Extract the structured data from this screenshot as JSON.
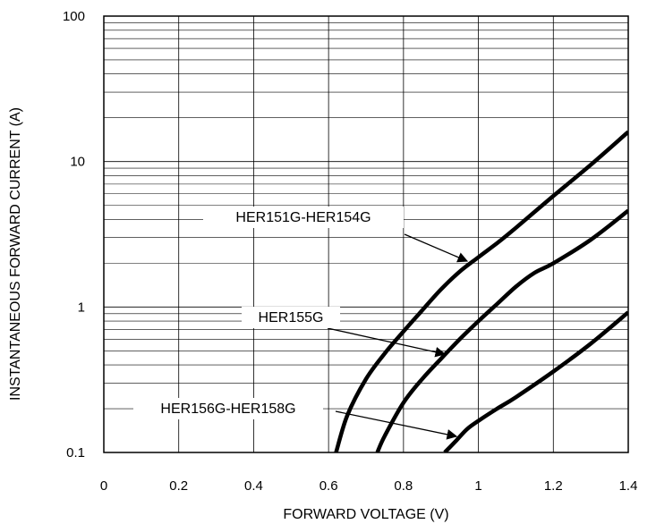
{
  "chart_data": {
    "type": "line",
    "title": "",
    "xlabel": "FORWARD VOLTAGE (V)",
    "ylabel": "INSTANTANEOUS FORWARD CURRENT (A)",
    "xlim": [
      0,
      1.4
    ],
    "ylim": [
      0.1,
      100
    ],
    "yscale": "log",
    "grid": true,
    "x_ticks": [
      "0",
      "0.2",
      "0.4",
      "0.6",
      "0.8",
      "1",
      "1.2",
      "1.4"
    ],
    "y_ticks": [
      "0.1",
      "1",
      "10",
      "100"
    ],
    "series": [
      {
        "name": "HER151G-HER154G",
        "x": [
          0.62,
          0.65,
          0.7,
          0.75,
          0.8,
          0.85,
          0.9,
          0.95,
          1.0,
          1.05,
          1.1,
          1.2,
          1.3,
          1.4
        ],
        "y": [
          0.1,
          0.18,
          0.32,
          0.48,
          0.68,
          0.95,
          1.32,
          1.75,
          2.2,
          2.75,
          3.5,
          5.8,
          9.5,
          16
        ]
      },
      {
        "name": "HER155G",
        "x": [
          0.73,
          0.75,
          0.8,
          0.85,
          0.9,
          0.95,
          1.0,
          1.05,
          1.1,
          1.15,
          1.2,
          1.3,
          1.4
        ],
        "y": [
          0.1,
          0.13,
          0.22,
          0.32,
          0.44,
          0.6,
          0.8,
          1.05,
          1.38,
          1.72,
          2.0,
          2.9,
          4.6
        ]
      },
      {
        "name": "HER156G-HER158G",
        "x": [
          0.91,
          0.94,
          0.97,
          1.0,
          1.05,
          1.1,
          1.2,
          1.3,
          1.4
        ],
        "y": [
          0.1,
          0.12,
          0.145,
          0.165,
          0.2,
          0.24,
          0.36,
          0.56,
          0.92
        ]
      }
    ],
    "annotations": [
      {
        "text": "HER151G-HER154G",
        "series": "HER151G-HER154G"
      },
      {
        "text": "HER155G",
        "series": "HER155G"
      },
      {
        "text": "HER156G-HER158G",
        "series": "HER156G-HER158G"
      }
    ]
  }
}
